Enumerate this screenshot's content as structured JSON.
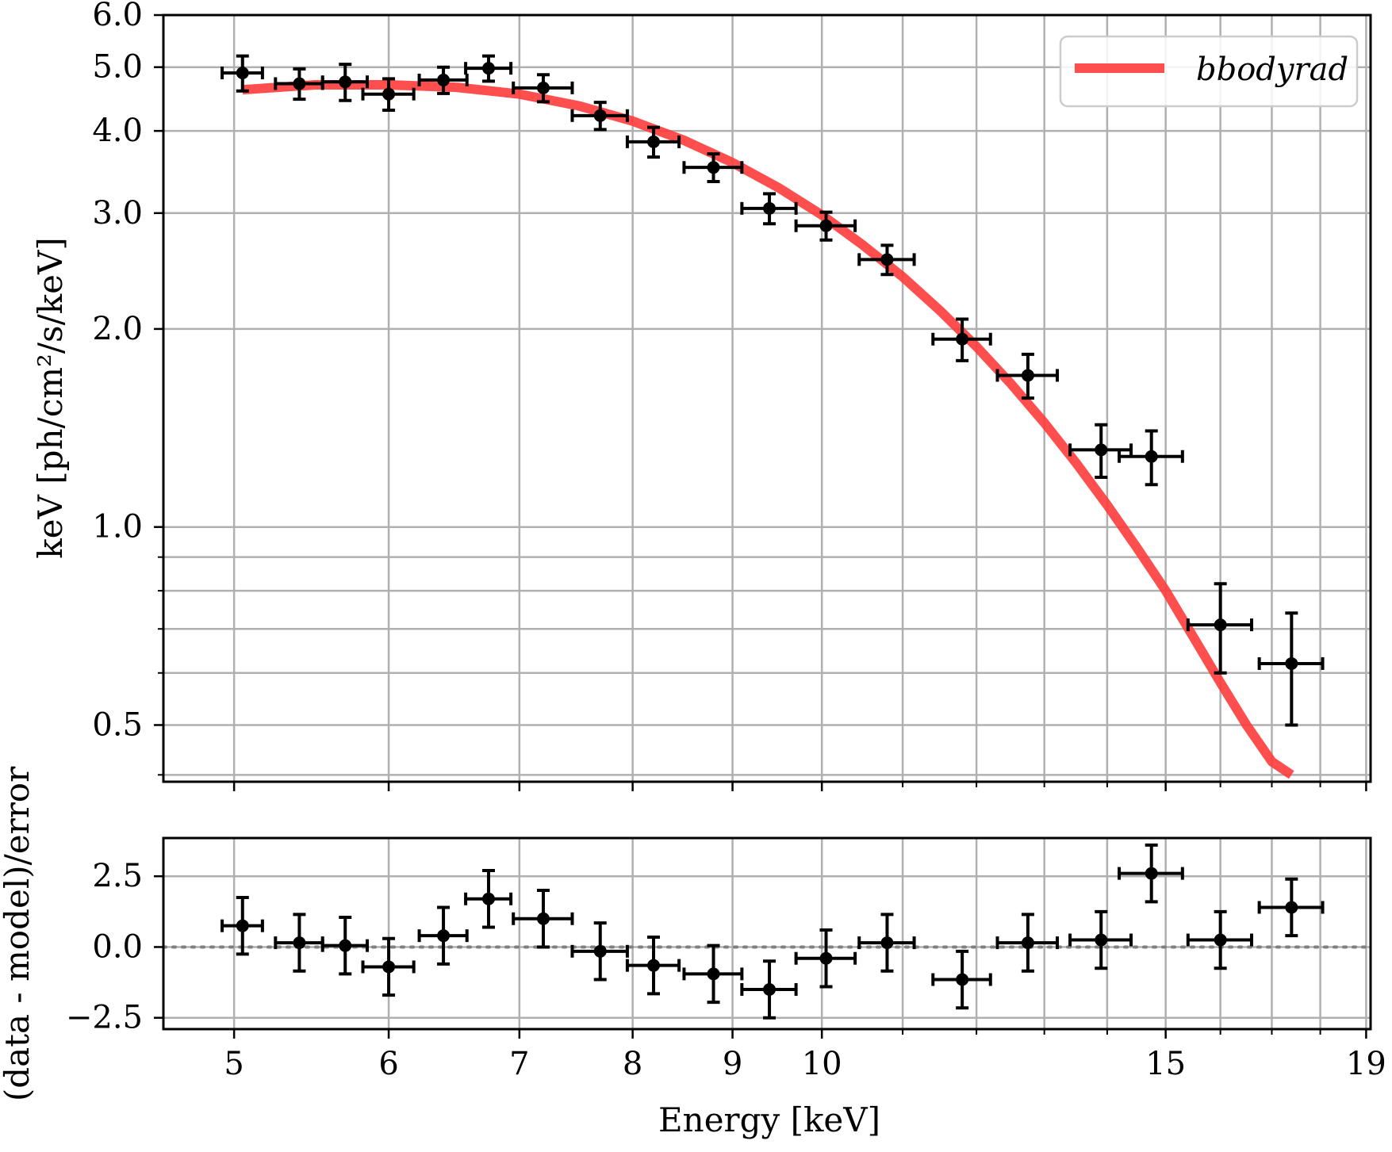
{
  "chart_data": [
    {
      "type": "scatter",
      "panel": "spectrum",
      "yscale": "log",
      "xscale": "log",
      "ylabel": "keV [ph/cm²/s/keV]",
      "xlabel": "Energy [keV]",
      "xlim": [
        4.6,
        19.1
      ],
      "ylim": [
        0.41,
        6.0
      ],
      "yticks": [
        6.0,
        5.0,
        4.0,
        3.0,
        2.0,
        1.0,
        0.5
      ],
      "ytick_labels": [
        "6.0",
        "5.0",
        "4.0",
        "3.0",
        "2.0",
        "1.0",
        "0.5"
      ],
      "grid": true,
      "legend": {
        "position": "top-right",
        "entries": [
          {
            "label": "bbodyrad",
            "color": "#ff3b3b"
          }
        ]
      },
      "series": [
        {
          "name": "data",
          "color": "#000000",
          "x": [
            5.05,
            5.4,
            5.7,
            6.0,
            6.4,
            6.75,
            7.2,
            7.7,
            8.2,
            8.8,
            9.4,
            10.05,
            10.8,
            11.8,
            12.75,
            13.9,
            14.75,
            16.0,
            17.4
          ],
          "xerr": [
            0.12,
            0.15,
            0.15,
            0.18,
            0.18,
            0.18,
            0.25,
            0.25,
            0.25,
            0.3,
            0.3,
            0.35,
            0.35,
            0.4,
            0.45,
            0.5,
            0.55,
            0.6,
            0.65
          ],
          "y": [
            4.9,
            4.72,
            4.75,
            4.55,
            4.78,
            4.98,
            4.65,
            4.22,
            3.85,
            3.52,
            3.05,
            2.87,
            2.55,
            1.93,
            1.7,
            1.31,
            1.28,
            0.71,
            0.62
          ],
          "yerr": [
            0.3,
            0.25,
            0.3,
            0.25,
            0.22,
            0.22,
            0.22,
            0.2,
            0.2,
            0.17,
            0.16,
            0.14,
            0.13,
            0.14,
            0.13,
            0.12,
            0.12,
            0.11,
            0.12
          ]
        },
        {
          "name": "bbodyrad",
          "type": "line",
          "color": "#ff3b3b",
          "x": [
            5.05,
            5.5,
            6.0,
            6.5,
            7.0,
            7.5,
            8.0,
            8.5,
            9.0,
            9.5,
            10.0,
            10.5,
            11.0,
            11.5,
            12.0,
            12.5,
            13.0,
            13.5,
            14.0,
            14.5,
            15.0,
            15.5,
            16.0,
            16.5,
            17.0,
            17.4
          ],
          "y": [
            4.62,
            4.7,
            4.7,
            4.66,
            4.55,
            4.37,
            4.14,
            3.87,
            3.58,
            3.28,
            2.98,
            2.68,
            2.4,
            2.13,
            1.88,
            1.65,
            1.44,
            1.25,
            1.08,
            0.93,
            0.8,
            0.68,
            0.58,
            0.5,
            0.44,
            0.42
          ]
        }
      ]
    },
    {
      "type": "scatter",
      "panel": "residuals",
      "xscale": "log",
      "ylabel": "(data - model)/error",
      "xlabel": "Energy [keV]",
      "xlim": [
        4.6,
        19.1
      ],
      "ylim": [
        -2.9,
        3.85
      ],
      "yticks": [
        2.5,
        0.0,
        -2.5
      ],
      "ytick_labels": [
        "2.5",
        "0.0",
        "−2.5"
      ],
      "xticks": [
        5,
        6,
        7,
        8,
        9,
        10,
        15,
        19
      ],
      "xtick_labels": [
        "5",
        "6",
        "7",
        "8",
        "9",
        "10",
        "15",
        "19"
      ],
      "xminor": [
        11,
        12,
        13,
        14,
        16,
        17,
        18
      ],
      "zero_line": {
        "y": 0.0,
        "style": "dotted",
        "color": "#808080"
      },
      "grid": true,
      "series": [
        {
          "name": "residuals",
          "color": "#000000",
          "x": [
            5.05,
            5.4,
            5.7,
            6.0,
            6.4,
            6.75,
            7.2,
            7.7,
            8.2,
            8.8,
            9.4,
            10.05,
            10.8,
            11.8,
            12.75,
            13.9,
            14.75,
            16.0,
            17.4
          ],
          "xerr": [
            0.12,
            0.15,
            0.15,
            0.18,
            0.18,
            0.18,
            0.25,
            0.25,
            0.25,
            0.3,
            0.3,
            0.35,
            0.35,
            0.4,
            0.45,
            0.5,
            0.55,
            0.6,
            0.65
          ],
          "y": [
            0.75,
            0.15,
            0.05,
            -0.7,
            0.4,
            1.7,
            1.0,
            -0.15,
            -0.65,
            -0.95,
            -1.5,
            -0.4,
            0.15,
            -1.15,
            0.15,
            0.25,
            2.6,
            0.25,
            1.4
          ],
          "yerr": [
            1.0,
            1.0,
            1.0,
            1.0,
            1.0,
            1.0,
            1.0,
            1.0,
            1.0,
            1.0,
            1.0,
            1.0,
            1.0,
            1.0,
            1.0,
            1.0,
            1.0,
            1.0,
            1.0
          ]
        }
      ]
    }
  ]
}
